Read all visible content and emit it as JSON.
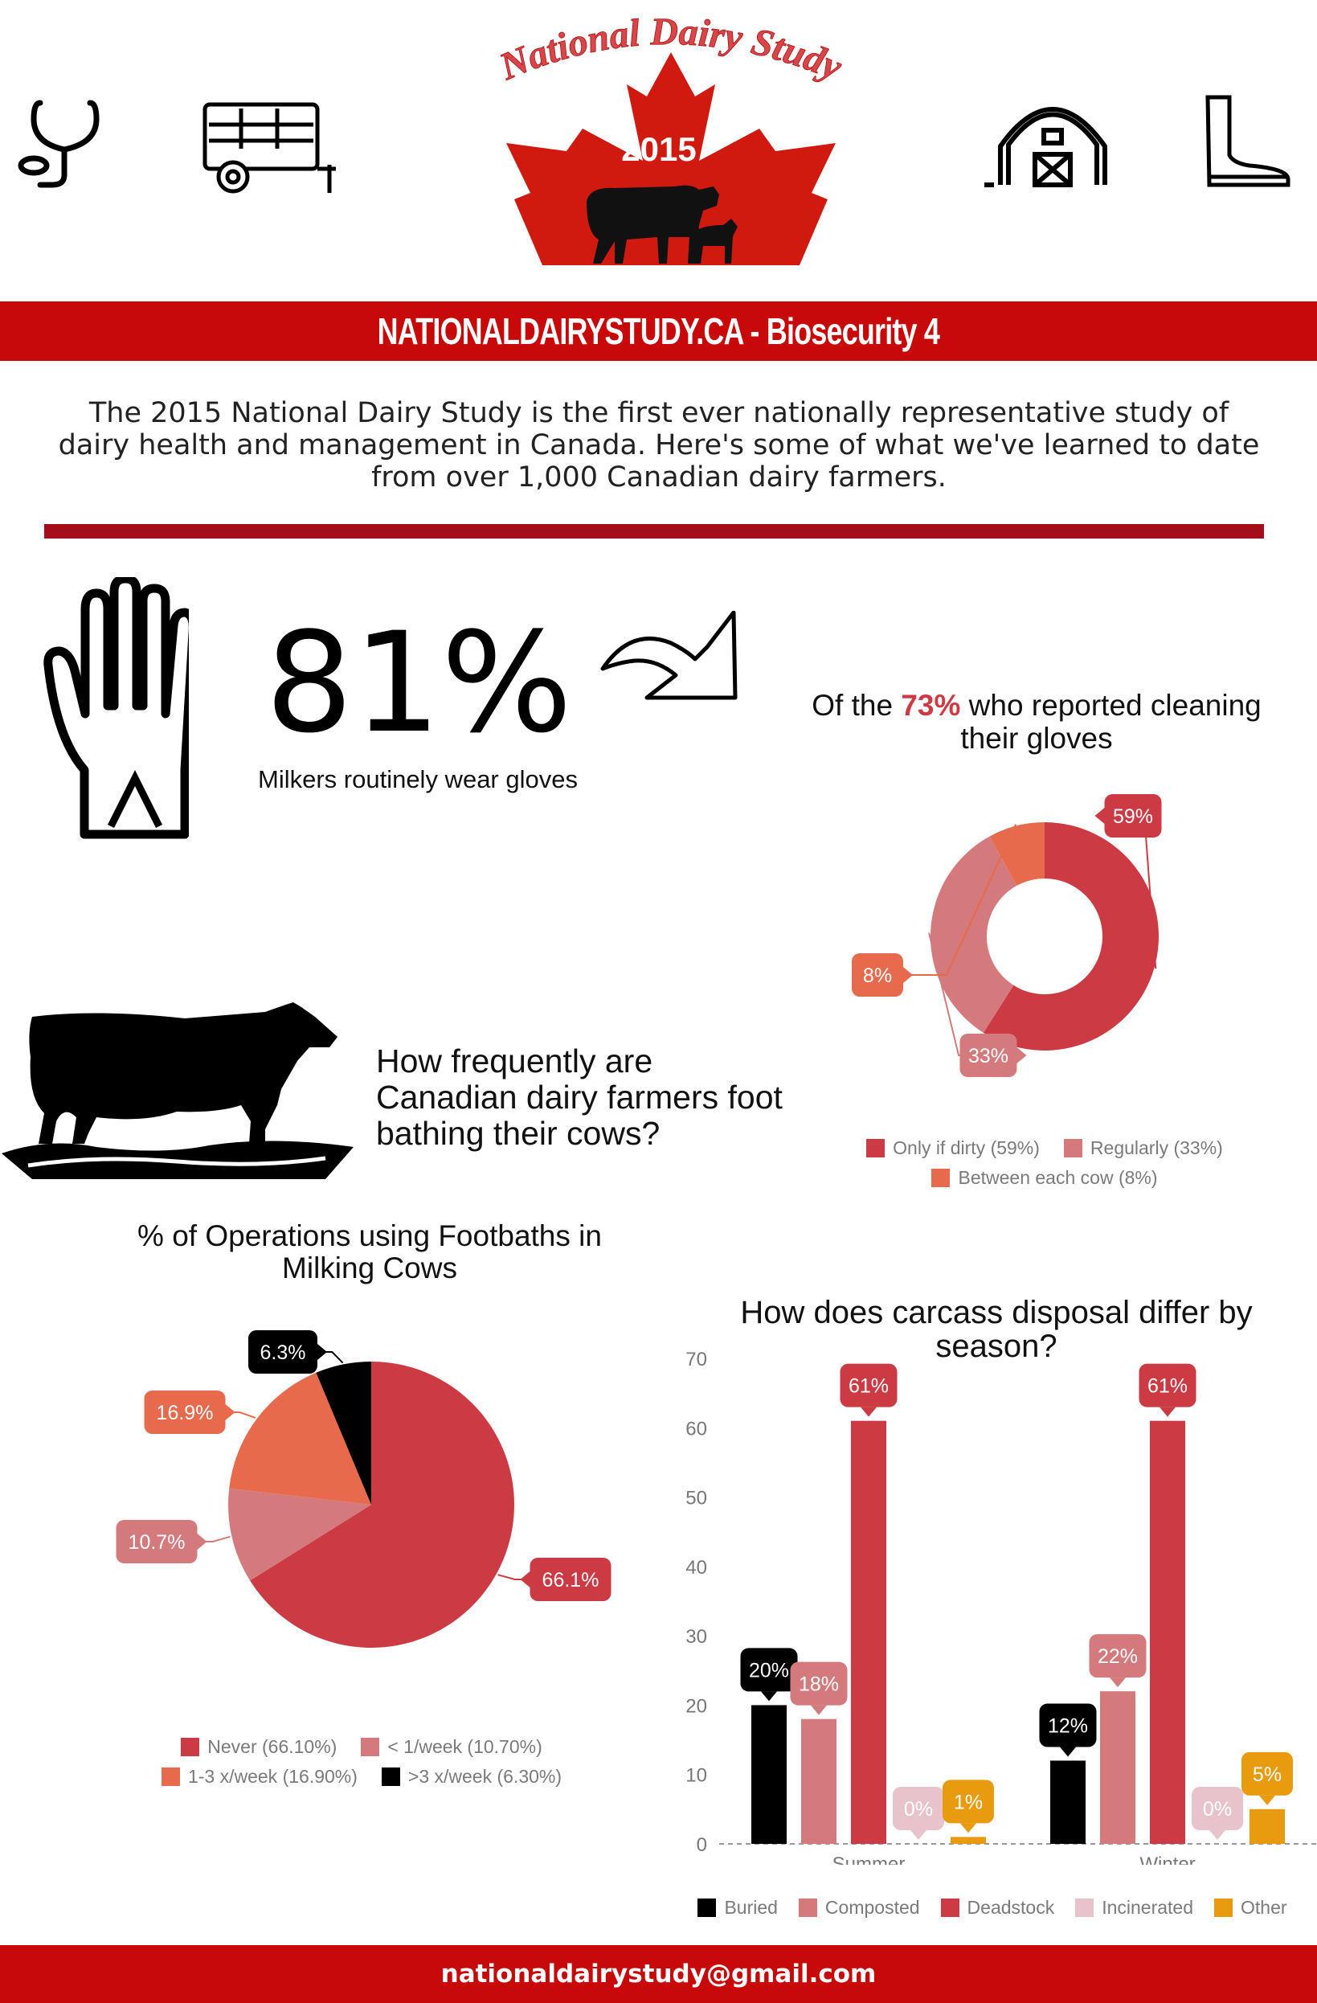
{
  "header": {
    "logo_title": "National Dairy Study",
    "logo_year": "2015",
    "icons": [
      "stethoscope-icon",
      "livestock-trailer-icon",
      "barn-icon",
      "rubber-boot-icon"
    ]
  },
  "banner": {
    "text": "NATIONALDAIRYSTUDY.CA - Biosecurity 4"
  },
  "intro": {
    "text": "The 2015 National Dairy Study is the first ever nationally representative study of dairy health and management in Canada. Here's some of what we've learned to date from over 1,000 Canadian dairy farmers."
  },
  "gloves": {
    "stat": "81%",
    "caption": "Milkers routinely wear gloves",
    "title_pre": "Of the",
    "title_accent": "73%",
    "title_post": "who reported cleaning their gloves"
  },
  "footbath_question": {
    "text": "How frequently are Canadian dairy farmers foot bathing their cows?"
  },
  "colors": {
    "brand_red": "#c80909",
    "red": "#cc3b43",
    "pink": "#d47a7d",
    "orange": "#e86a4c",
    "black": "#000000",
    "light_pink": "#e9c3cc",
    "gold": "#e99b0f"
  },
  "chart_data": [
    {
      "type": "pie",
      "title": "",
      "variant": "donut",
      "labels": [
        "Only if dirty (59%)",
        "Regularly (33%)",
        "Between each cow (8%)"
      ],
      "values": [
        59,
        33,
        8
      ],
      "value_labels": [
        "59%",
        "33%",
        "8%"
      ],
      "colors": [
        "#cc3b43",
        "#d47a7d",
        "#e86a4c"
      ],
      "legend": "bottom"
    },
    {
      "type": "pie",
      "title": "% of Operations using Footbaths in Milking Cows",
      "labels": [
        "Never (66.10%)",
        "< 1/week (10.70%)",
        "1-3 x/week (16.90%)",
        ">3 x/week (6.30%)"
      ],
      "values": [
        66.1,
        10.7,
        16.9,
        6.3
      ],
      "value_labels": [
        "66.1%",
        "10.7%",
        "16.9%",
        "6.3%"
      ],
      "colors": [
        "#cc3b43",
        "#d47a7d",
        "#e86a4c",
        "#000000"
      ],
      "legend": "bottom"
    },
    {
      "type": "bar",
      "title": "How does carcass disposal differ by season?",
      "categories": [
        "Summer",
        "Winter"
      ],
      "series": [
        {
          "name": "Buried",
          "values": [
            20,
            12
          ],
          "labels": [
            "20%",
            "12%"
          ],
          "color": "#000000"
        },
        {
          "name": "Composted",
          "values": [
            18,
            22
          ],
          "labels": [
            "18%",
            "22%"
          ],
          "color": "#d47a7d"
        },
        {
          "name": "Deadstock",
          "values": [
            61,
            61
          ],
          "labels": [
            "61%",
            "61%"
          ],
          "color": "#cc3b43"
        },
        {
          "name": "Incinerated",
          "values": [
            0,
            0
          ],
          "labels": [
            "0%",
            "0%"
          ],
          "color": "#e9c3cc"
        },
        {
          "name": "Other",
          "values": [
            1,
            5
          ],
          "labels": [
            "1%",
            "5%"
          ],
          "color": "#e99b0f"
        }
      ],
      "ylim": [
        0,
        70
      ],
      "yticks": [
        "0",
        "10",
        "20",
        "30",
        "40",
        "50",
        "60",
        "70"
      ],
      "legend": "bottom"
    }
  ],
  "footer": {
    "email": "nationaldairystudy@gmail.com"
  }
}
